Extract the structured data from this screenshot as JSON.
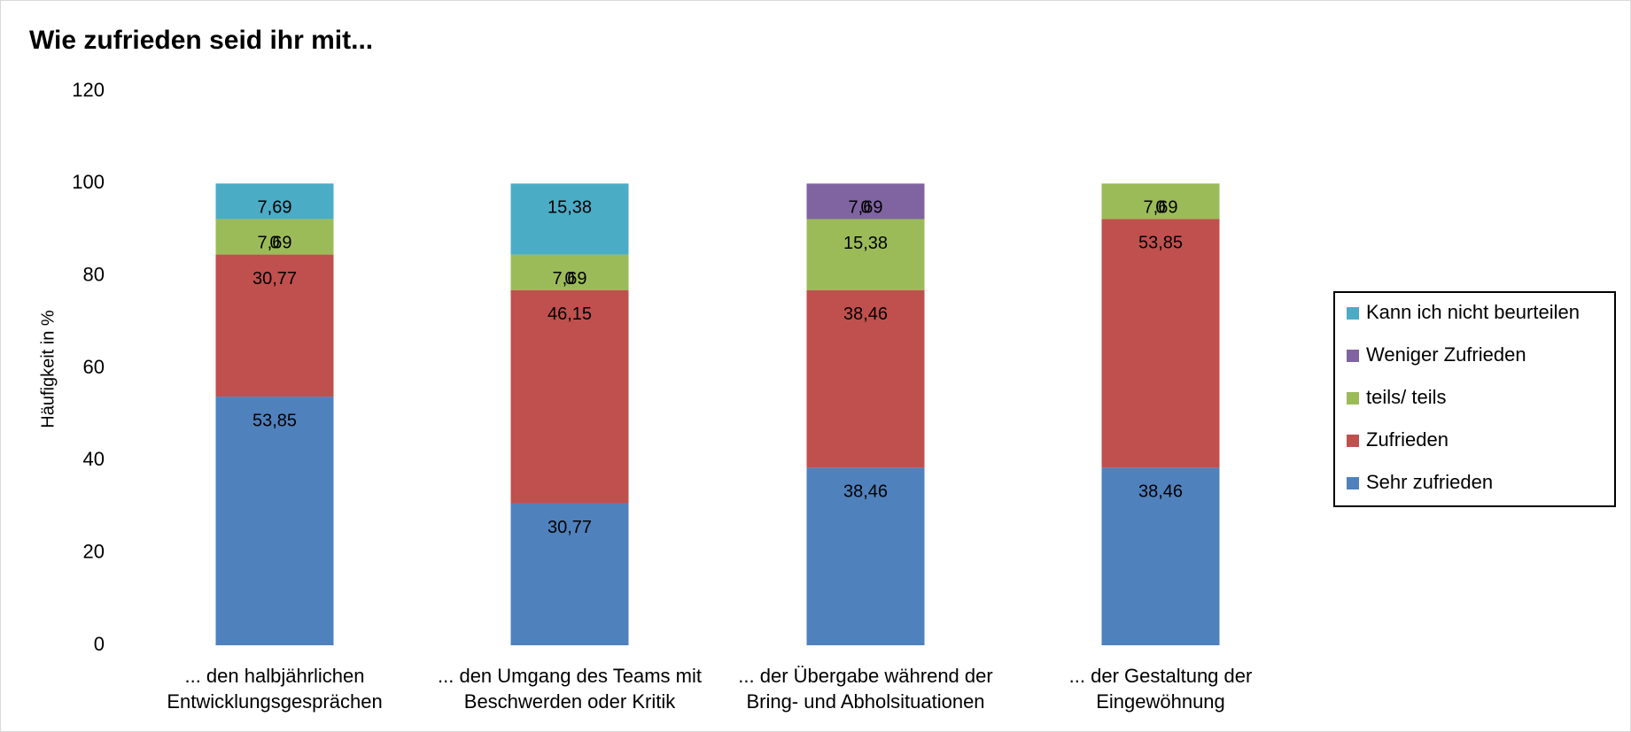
{
  "chart_data": {
    "type": "stacked_bar",
    "title": "Wie zufrieden seid ihr mit...",
    "y_label": "Häufigkeit in %",
    "categories": [
      "... den halbjährlichen\nEntwicklungsgesprächen",
      "... den Umgang des Teams mit\nBeschwerden oder Kritik",
      "... der Übergabe während der\nBring- und Abholsituationen",
      "... der Gestaltung der\nEingewöhnung"
    ],
    "series": [
      {
        "name": "Sehr zufrieden",
        "color": "#4f81bd",
        "values": [
          53.85,
          30.77,
          38.46,
          38.46
        ],
        "value_labels": [
          "53,85",
          "30,77",
          "38,46",
          "38,46"
        ]
      },
      {
        "name": "Zufrieden",
        "color": "#c0504d",
        "values": [
          30.77,
          46.15,
          38.46,
          53.85
        ],
        "value_labels": [
          "30,77",
          "46,15",
          "38,46",
          "53,85"
        ]
      },
      {
        "name": "teils/ teils",
        "color": "#9bbb59",
        "values": [
          7.69,
          7.69,
          15.38,
          7.69
        ],
        "value_labels": [
          "7,69",
          "7,69",
          "15,38",
          "7,69"
        ]
      },
      {
        "name": "Weniger Zufrieden",
        "color": "#8064a2",
        "values": [
          0,
          0,
          7.69,
          0
        ],
        "value_labels": [
          "0",
          "0",
          "7,69",
          "0"
        ]
      },
      {
        "name": "Kann ich nicht beurteilen",
        "color": "#4bacc6",
        "values": [
          7.69,
          15.38,
          0,
          0
        ],
        "value_labels": [
          "7,69",
          "15,38",
          "0",
          "0"
        ]
      }
    ],
    "ylim": [
      0,
      120
    ],
    "yticks": [
      0,
      20,
      40,
      60,
      80,
      100,
      120
    ],
    "grid": false,
    "legend": "right"
  }
}
